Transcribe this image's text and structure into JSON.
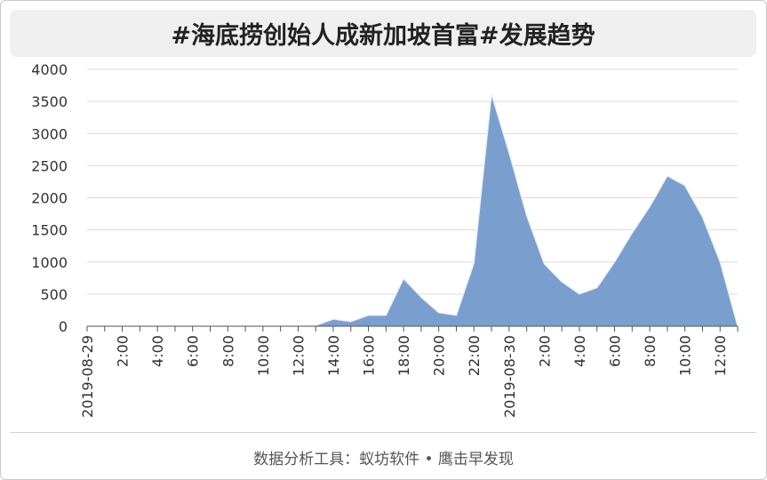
{
  "title": "#海底捞创始人成新加坡首富#发展趋势",
  "footer": "数据分析工具：蚁坊软件 • 鹰击早发现",
  "colors": {
    "area_fill": "#7a9fcf",
    "area_stroke": "#6a90c4",
    "grid": "#d9d9d9",
    "axis_text": "#333333"
  },
  "chart_data": {
    "type": "area",
    "title": "#海底捞创始人成新加坡首富#发展趋势",
    "xlabel": "",
    "ylabel": "",
    "ylim": [
      0,
      4000
    ],
    "yticks": [
      "0",
      "500",
      "1000",
      "1500",
      "2000",
      "2500",
      "3000",
      "3500",
      "4000"
    ],
    "grid": true,
    "legend": "none",
    "x": [
      "2019-08-29",
      "1:00",
      "2:00",
      "3:00",
      "4:00",
      "5:00",
      "6:00",
      "7:00",
      "8:00",
      "9:00",
      "10:00",
      "11:00",
      "12:00",
      "13:00",
      "14:00",
      "15:00",
      "16:00",
      "17:00",
      "18:00",
      "19:00",
      "20:00",
      "21:00",
      "22:00",
      "23:00",
      "2019-08-30",
      "1:00",
      "2:00",
      "3:00",
      "4:00",
      "5:00",
      "6:00",
      "7:00",
      "8:00",
      "9:00",
      "10:00",
      "11:00",
      "12:00",
      "13:00"
    ],
    "xtick_labels": [
      "2019-08-29",
      "",
      "2:00",
      "",
      "4:00",
      "",
      "6:00",
      "",
      "8:00",
      "",
      "10:00",
      "",
      "12:00",
      "",
      "14:00",
      "",
      "16:00",
      "",
      "18:00",
      "",
      "20:00",
      "",
      "22:00",
      "",
      "2019-08-30",
      "",
      "2:00",
      "",
      "4:00",
      "",
      "6:00",
      "",
      "8:00",
      "",
      "10:00",
      "",
      "12:00",
      ""
    ],
    "values": [
      0,
      0,
      0,
      0,
      0,
      0,
      0,
      0,
      0,
      0,
      0,
      0,
      0,
      10,
      110,
      70,
      170,
      170,
      740,
      450,
      210,
      170,
      980,
      3610,
      2700,
      1720,
      970,
      690,
      500,
      600,
      1000,
      1450,
      1860,
      2340,
      2190,
      1700,
      1000,
      0
    ]
  }
}
